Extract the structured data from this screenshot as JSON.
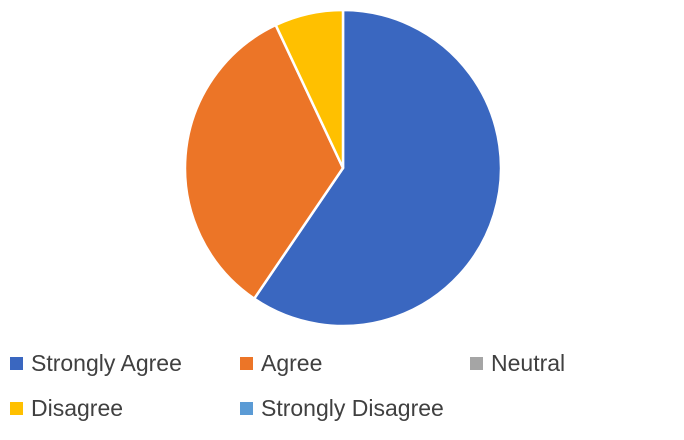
{
  "chart_data": {
    "type": "pie",
    "categories": [
      "Strongly Agree",
      "Agree",
      "Neutral",
      "Disagree",
      "Strongly Disagree"
    ],
    "values": [
      59.5,
      33.5,
      0,
      7,
      0
    ],
    "colors": [
      "#3a67c0",
      "#ec7527",
      "#a5a5a5",
      "#ffc000",
      "#5b9bd5"
    ],
    "title": "",
    "legend_position": "bottom"
  }
}
